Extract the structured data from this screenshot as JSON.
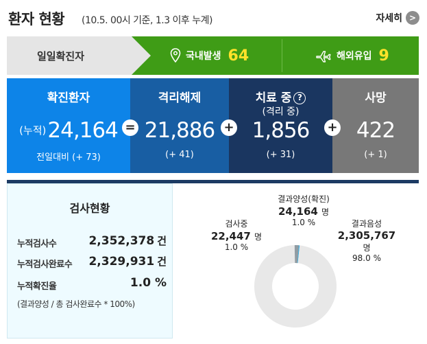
{
  "header": {
    "title": "환자 현황",
    "subtitle": "(10.5. 00시 기준, 1.3 이후 누계)",
    "more_label": "자세히",
    "more_icon": ">"
  },
  "daily": {
    "label": "일일확진자",
    "domestic_label": "국내발생",
    "domestic_value": "64",
    "overseas_label": "해외유입",
    "overseas_value": "9"
  },
  "stats": {
    "confirmed": {
      "label": "확진환자",
      "prefix": "(누적)",
      "value": "24,164",
      "delta": "전일대비 (+ 73)"
    },
    "released": {
      "label": "격리해제",
      "value": "21,886",
      "delta": "(+ 41)"
    },
    "treatment": {
      "label": "치료 중",
      "sublabel": "(격리 중)",
      "value": "1,856",
      "delta": "(+ 31)",
      "help": "?"
    },
    "deaths": {
      "label": "사망",
      "value": "422",
      "delta": "(+ 1)"
    },
    "op_equals": "=",
    "op_plus": "+"
  },
  "tests": {
    "title": "검사현황",
    "rows": [
      {
        "label": "누적검사수",
        "value": "2,352,378",
        "unit": "건"
      },
      {
        "label": "누적검사완료수",
        "value": "2,329,931",
        "unit": "건"
      },
      {
        "label": "누적확진율",
        "value": "1.0 %",
        "unit": ""
      }
    ],
    "note": "(결과양성 / 총 검사완료수 * 100%)"
  },
  "chart_data": {
    "type": "pie",
    "title": "",
    "slices": [
      {
        "label": "결과양성(확진)",
        "value": 24164,
        "unit": "명",
        "percent": 1.0,
        "color": "#2fb1e8"
      },
      {
        "label": "결과음성",
        "value": 2305767,
        "unit": "명",
        "percent": 98.0,
        "color": "#e8e8e8"
      },
      {
        "label": "검사중",
        "value": 22447,
        "unit": "명",
        "percent": 1.0,
        "color": "#919ca3"
      }
    ],
    "display": {
      "positive": {
        "label": "결과양성(확진)",
        "value": "24,164",
        "unit": "명",
        "percent": "1.0 %"
      },
      "negative": {
        "label": "결과음성",
        "value": "2,305,767",
        "unit": "명",
        "percent": "98.0 %"
      },
      "testing": {
        "label": "검사중",
        "value": "22,447",
        "unit": "명",
        "percent": "1.0 %"
      }
    }
  },
  "colors": {
    "confirmed": "#0d84e8",
    "released": "#185ea3",
    "treatment": "#1a3660",
    "deaths": "#787878",
    "daily_green": "#3f9c16",
    "daily_value": "#ffe22a"
  }
}
